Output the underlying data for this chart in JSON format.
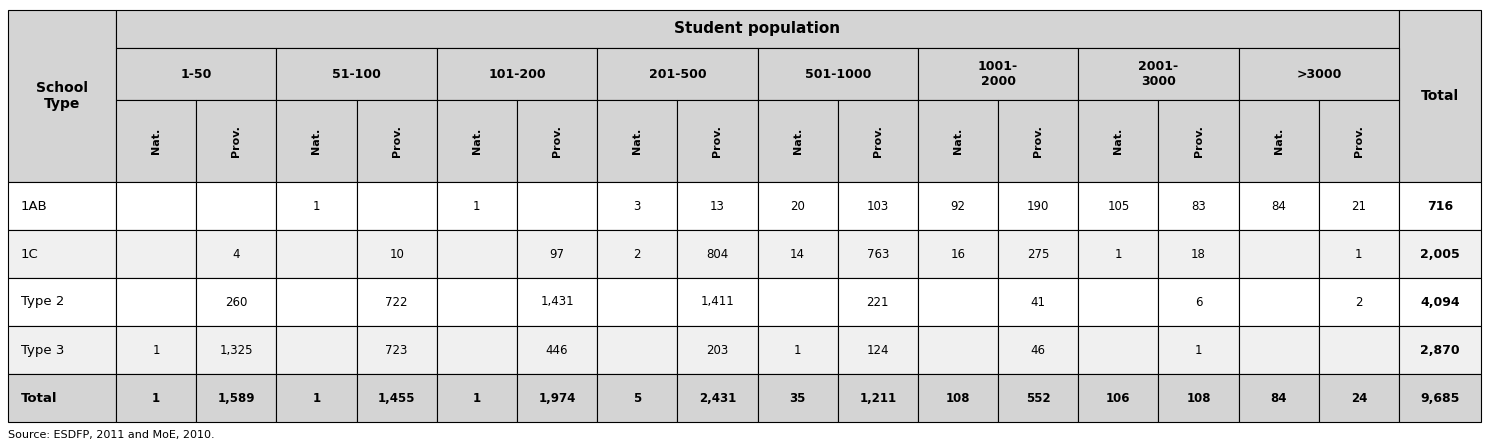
{
  "source": "Source: ESDFP, 2011 and MoE, 2010.",
  "group_labels": [
    "1-50",
    "51-100",
    "101-200",
    "201-500",
    "501-1000",
    "1001-\n2000",
    "2001-\n3000",
    ">3000"
  ],
  "rows": [
    {
      "type": "1AB",
      "is_total": false,
      "vals": [
        "",
        "",
        "1",
        "",
        "1",
        "",
        "3",
        "13",
        "20",
        "103",
        "92",
        "190",
        "105",
        "83",
        "84",
        "21",
        "716"
      ]
    },
    {
      "type": "1C",
      "is_total": false,
      "vals": [
        "",
        "4",
        "",
        "10",
        "",
        "97",
        "2",
        "804",
        "14",
        "763",
        "16",
        "275",
        "1",
        "18",
        "",
        "1",
        "2,005"
      ]
    },
    {
      "type": "Type 2",
      "is_total": false,
      "vals": [
        "",
        "260",
        "",
        "722",
        "",
        "1,431",
        "",
        "1,411",
        "",
        "221",
        "",
        "41",
        "",
        "6",
        "",
        "2",
        "4,094"
      ]
    },
    {
      "type": "Type 3",
      "is_total": false,
      "vals": [
        "1",
        "1,325",
        "",
        "723",
        "",
        "446",
        "",
        "203",
        "1",
        "124",
        "",
        "46",
        "",
        "1",
        "",
        "",
        "2,870"
      ]
    },
    {
      "type": "Total",
      "is_total": true,
      "vals": [
        "1",
        "1,589",
        "1",
        "1,455",
        "1",
        "1,974",
        "5",
        "2,431",
        "35",
        "1,211",
        "108",
        "552",
        "106",
        "108",
        "84",
        "24",
        "9,685"
      ]
    }
  ],
  "bg_header": "#d4d4d4",
  "bg_white": "#ffffff",
  "bg_light": "#f0f0f0",
  "border": "#000000"
}
